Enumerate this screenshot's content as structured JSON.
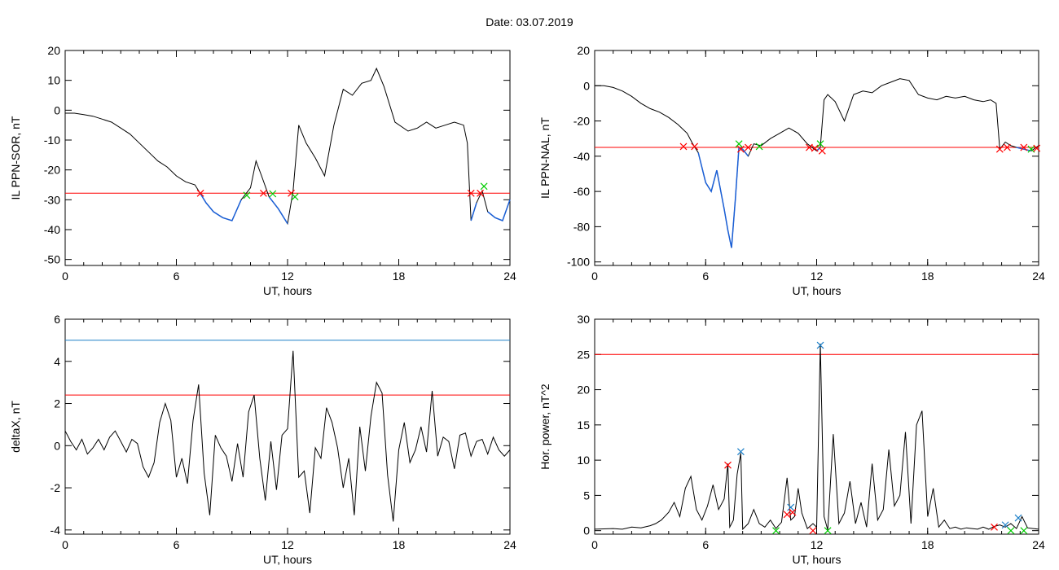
{
  "header": {
    "title": "Date:  03.07.2019"
  },
  "chart_data": [
    {
      "id": "p1",
      "type": "line",
      "xlabel": "UT, hours",
      "ylabel": "IL PPN-SOR, nT",
      "xlim": [
        0,
        24
      ],
      "ylim": [
        -52,
        20
      ],
      "xticks": [
        0,
        6,
        12,
        18,
        24
      ],
      "yticks": [
        -50,
        -40,
        -30,
        -20,
        -10,
        0,
        10,
        20
      ],
      "grid": false,
      "series": [
        {
          "color": "#000000",
          "highlight_color": "#1a5fd6",
          "highlight_below": -27.8,
          "x": [
            0,
            0.5,
            1,
            1.5,
            2,
            2.5,
            3,
            3.5,
            4,
            4.5,
            5,
            5.5,
            6,
            6.5,
            7,
            7.3,
            7.6,
            8,
            8.5,
            9,
            9.5,
            10,
            10.3,
            10.6,
            11,
            11.5,
            12,
            12.3,
            12.6,
            13,
            13.5,
            14,
            14.5,
            15,
            15.5,
            16,
            16.5,
            16.8,
            17.2,
            17.8,
            18.5,
            19,
            19.5,
            20,
            20.5,
            21,
            21.5,
            21.7,
            21.9,
            22.2,
            22.5,
            22.8,
            23.2,
            23.6,
            24
          ],
          "values": [
            -1,
            -1,
            -1.5,
            -2,
            -3,
            -4,
            -6,
            -8,
            -11,
            -14,
            -17,
            -19,
            -22,
            -24,
            -25,
            -28,
            -31,
            -34,
            -36,
            -37,
            -30,
            -26,
            -17,
            -22,
            -29,
            -33,
            -38,
            -27,
            -5,
            -11,
            -16,
            -22,
            -5,
            7,
            5,
            9,
            10,
            14,
            8,
            -4,
            -7,
            -6,
            -4,
            -6,
            -5,
            -4,
            -5,
            -11,
            -37,
            -31,
            -27,
            -34,
            -36,
            -37,
            -30
          ]
        }
      ],
      "threshold_lines": [
        {
          "value": -27.8,
          "color": "#ff0000"
        }
      ],
      "markers": [
        {
          "x": 7.3,
          "y": -27.8,
          "color": "#ff0000"
        },
        {
          "x": 9.8,
          "y": -28.5,
          "color": "#00cc00"
        },
        {
          "x": 10.7,
          "y": -27.8,
          "color": "#ff0000"
        },
        {
          "x": 11.2,
          "y": -28,
          "color": "#00cc00"
        },
        {
          "x": 12.2,
          "y": -27.8,
          "color": "#ff0000"
        },
        {
          "x": 12.4,
          "y": -29,
          "color": "#00cc00"
        },
        {
          "x": 21.9,
          "y": -27.8,
          "color": "#ff0000"
        },
        {
          "x": 22.4,
          "y": -27.8,
          "color": "#ff0000"
        },
        {
          "x": 22.6,
          "y": -25.5,
          "color": "#00cc00"
        }
      ]
    },
    {
      "id": "p2",
      "type": "line",
      "xlabel": "UT, hours",
      "ylabel": "IL PPN-NAL, nT",
      "xlim": [
        0,
        24
      ],
      "ylim": [
        -102,
        20
      ],
      "xticks": [
        0,
        6,
        12,
        18,
        24
      ],
      "yticks": [
        -100,
        -80,
        -60,
        -40,
        -20,
        0,
        20
      ],
      "grid": false,
      "series": [
        {
          "color": "#000000",
          "highlight_color": "#1a5fd6",
          "highlight_below": -35,
          "x": [
            0,
            0.5,
            1,
            1.5,
            2,
            2.5,
            3,
            3.5,
            4,
            4.5,
            5,
            5.3,
            5.6,
            6,
            6.3,
            6.6,
            7,
            7.2,
            7.4,
            7.6,
            7.8,
            8,
            8.3,
            8.6,
            9,
            9.5,
            10,
            10.5,
            11,
            11.5,
            12,
            12.2,
            12.4,
            12.6,
            13,
            13.5,
            14,
            14.5,
            15,
            15.5,
            16,
            16.5,
            17,
            17.5,
            18,
            18.5,
            19,
            19.5,
            20,
            20.5,
            21,
            21.4,
            21.7,
            21.9,
            22.2,
            22.5,
            22.8,
            23.2,
            23.6,
            24
          ],
          "values": [
            0,
            0,
            -1,
            -3,
            -6,
            -10,
            -13,
            -15,
            -18,
            -22,
            -27,
            -33,
            -38,
            -55,
            -60,
            -48,
            -70,
            -82,
            -92,
            -65,
            -35,
            -36,
            -40,
            -33,
            -34,
            -30,
            -27,
            -24,
            -27,
            -33,
            -37,
            -35,
            -8,
            -5,
            -9,
            -20,
            -5,
            -3,
            -4,
            0,
            2,
            4,
            3,
            -5,
            -7,
            -8,
            -6,
            -7,
            -6,
            -8,
            -9,
            -8,
            -10,
            -36,
            -32,
            -34,
            -35,
            -36,
            -37,
            -34
          ]
        }
      ],
      "threshold_lines": [
        {
          "value": -35,
          "color": "#ff0000"
        }
      ],
      "markers": [
        {
          "x": 4.8,
          "y": -34.5,
          "color": "#ff0000"
        },
        {
          "x": 5.4,
          "y": -34.5,
          "color": "#ff0000"
        },
        {
          "x": 7.8,
          "y": -33,
          "color": "#00cc00"
        },
        {
          "x": 7.9,
          "y": -36,
          "color": "#ff0000"
        },
        {
          "x": 8.3,
          "y": -35,
          "color": "#ff0000"
        },
        {
          "x": 8.9,
          "y": -34.5,
          "color": "#00cc00"
        },
        {
          "x": 11.6,
          "y": -35,
          "color": "#ff0000"
        },
        {
          "x": 11.9,
          "y": -35.5,
          "color": "#ff0000"
        },
        {
          "x": 12.2,
          "y": -33,
          "color": "#00cc00"
        },
        {
          "x": 12.3,
          "y": -37,
          "color": "#ff0000"
        },
        {
          "x": 21.9,
          "y": -36,
          "color": "#ff0000"
        },
        {
          "x": 22.3,
          "y": -35,
          "color": "#ff0000"
        },
        {
          "x": 23.2,
          "y": -35,
          "color": "#ff0000"
        },
        {
          "x": 23.6,
          "y": -36,
          "color": "#00cc00"
        },
        {
          "x": 23.9,
          "y": -35.5,
          "color": "#ff0000"
        }
      ]
    },
    {
      "id": "p3",
      "type": "line",
      "xlabel": "UT, hours",
      "ylabel": "deltaX, nT",
      "xlim": [
        0,
        24
      ],
      "ylim": [
        -4.2,
        6
      ],
      "xticks": [
        0,
        6,
        12,
        18,
        24
      ],
      "yticks": [
        -4,
        -2,
        0,
        2,
        4,
        6
      ],
      "grid": false,
      "series": [
        {
          "color": "#000000",
          "x": [
            0,
            0.3,
            0.6,
            0.9,
            1.2,
            1.5,
            1.8,
            2.1,
            2.4,
            2.7,
            3.0,
            3.3,
            3.6,
            3.9,
            4.2,
            4.5,
            4.8,
            5.1,
            5.4,
            5.7,
            6.0,
            6.3,
            6.6,
            6.9,
            7.2,
            7.5,
            7.8,
            8.1,
            8.4,
            8.7,
            9.0,
            9.3,
            9.6,
            9.9,
            10.2,
            10.5,
            10.8,
            11.1,
            11.4,
            11.7,
            12.0,
            12.3,
            12.6,
            12.9,
            13.2,
            13.5,
            13.8,
            14.1,
            14.4,
            14.7,
            15.0,
            15.3,
            15.6,
            15.9,
            16.2,
            16.5,
            16.8,
            17.1,
            17.4,
            17.7,
            18.0,
            18.3,
            18.6,
            18.9,
            19.2,
            19.5,
            19.8,
            20.1,
            20.4,
            20.7,
            21.0,
            21.3,
            21.6,
            21.9,
            22.2,
            22.5,
            22.8,
            23.1,
            23.4,
            23.7,
            24.0
          ],
          "values": [
            0.7,
            0.2,
            -0.2,
            0.3,
            -0.4,
            -0.1,
            0.3,
            -0.2,
            0.4,
            0.7,
            0.2,
            -0.3,
            0.3,
            0.1,
            -1.0,
            -1.5,
            -0.8,
            1.1,
            2.0,
            1.2,
            -1.5,
            -0.6,
            -1.8,
            1.2,
            2.9,
            -1.3,
            -3.3,
            0.5,
            -0.1,
            -0.5,
            -1.7,
            0.1,
            -1.5,
            1.6,
            2.4,
            -0.6,
            -2.6,
            0.2,
            -2.1,
            0.5,
            0.8,
            4.5,
            -1.5,
            -1.2,
            -3.2,
            -0.1,
            -0.6,
            1.8,
            1.1,
            -0.1,
            -2.0,
            -0.6,
            -3.3,
            0.9,
            -1.2,
            1.4,
            3.0,
            2.5,
            -1.4,
            -3.6,
            -0.2,
            1.1,
            -0.8,
            -0.2,
            0.9,
            -0.3,
            2.6,
            -0.5,
            0.4,
            0.2,
            -1.1,
            0.5,
            0.6,
            -0.5,
            0.2,
            0.3,
            -0.4,
            0.4,
            -0.2,
            -0.5,
            -0.2
          ]
        }
      ],
      "threshold_lines": [
        {
          "value": 5.0,
          "color": "#1c7fc8"
        },
        {
          "value": 2.4,
          "color": "#ff0000"
        }
      ],
      "markers": []
    },
    {
      "id": "p4",
      "type": "line",
      "xlabel": "UT, hours",
      "ylabel": "Hor. power, nT^2",
      "xlim": [
        0,
        24
      ],
      "ylim": [
        -0.5,
        30
      ],
      "xticks": [
        0,
        6,
        12,
        18,
        24
      ],
      "yticks": [
        0,
        5,
        10,
        15,
        20,
        25,
        30
      ],
      "grid": false,
      "series": [
        {
          "color": "#000000",
          "x": [
            0,
            1,
            1.5,
            2,
            2.5,
            3,
            3.3,
            3.6,
            4,
            4.3,
            4.6,
            4.9,
            5.2,
            5.5,
            5.8,
            6.1,
            6.4,
            6.7,
            7.0,
            7.2,
            7.3,
            7.5,
            7.7,
            7.9,
            8.0,
            8.3,
            8.6,
            8.9,
            9.2,
            9.5,
            9.8,
            10.1,
            10.4,
            10.6,
            10.8,
            11.0,
            11.2,
            11.5,
            11.8,
            12.0,
            12.2,
            12.4,
            12.6,
            12.9,
            13.2,
            13.5,
            13.8,
            14.1,
            14.4,
            14.7,
            15.0,
            15.3,
            15.6,
            15.9,
            16.2,
            16.5,
            16.8,
            17.1,
            17.4,
            17.7,
            18.0,
            18.3,
            18.6,
            18.9,
            19.2,
            19.5,
            19.8,
            20.1,
            20.4,
            20.7,
            21.0,
            21.3,
            21.6,
            21.9,
            22.2,
            22.5,
            22.8,
            23.1,
            23.4,
            23.7,
            24.0
          ],
          "values": [
            0.2,
            0.3,
            0.2,
            0.5,
            0.4,
            0.7,
            1.0,
            1.5,
            2.6,
            4.0,
            2.0,
            6.0,
            7.7,
            3.0,
            1.5,
            3.5,
            6.5,
            3.0,
            4.5,
            9.5,
            0.5,
            1.5,
            8.0,
            11.0,
            0.2,
            1.0,
            3.0,
            1.0,
            0.5,
            1.5,
            0.3,
            1.2,
            7.5,
            1.5,
            2.0,
            6.0,
            2.5,
            0.3,
            1.0,
            0.5,
            26.5,
            2.0,
            0.1,
            13.7,
            1.0,
            2.5,
            7.0,
            1.0,
            4.0,
            0.5,
            9.5,
            1.5,
            3.0,
            11.5,
            3.5,
            5.0,
            14.0,
            1.0,
            15.0,
            17.0,
            2.0,
            6.0,
            0.5,
            1.5,
            0.3,
            0.5,
            0.2,
            0.4,
            0.3,
            0.2,
            0.5,
            0.2,
            0.6,
            0.8,
            0.5,
            1.0,
            0.3,
            2.0,
            0.4,
            0.3,
            0.2
          ]
        }
      ],
      "threshold_lines": [
        {
          "value": 25,
          "color": "#ff0000"
        }
      ],
      "markers": [
        {
          "x": 7.2,
          "y": 9.3,
          "color": "#ff0000"
        },
        {
          "x": 7.9,
          "y": 11.2,
          "color": "#1c7fc8"
        },
        {
          "x": 9.8,
          "y": 0,
          "color": "#00cc00"
        },
        {
          "x": 10.4,
          "y": 2.3,
          "color": "#ff0000"
        },
        {
          "x": 10.6,
          "y": 3.3,
          "color": "#1c7fc8"
        },
        {
          "x": 10.7,
          "y": 2.6,
          "color": "#ff0000"
        },
        {
          "x": 11.8,
          "y": 0,
          "color": "#ff0000"
        },
        {
          "x": 12.2,
          "y": 26.3,
          "color": "#1c7fc8"
        },
        {
          "x": 12.6,
          "y": 0,
          "color": "#00cc00"
        },
        {
          "x": 21.6,
          "y": 0.5,
          "color": "#ff0000"
        },
        {
          "x": 22.2,
          "y": 0.8,
          "color": "#1c7fc8"
        },
        {
          "x": 22.5,
          "y": 0,
          "color": "#00cc00"
        },
        {
          "x": 22.9,
          "y": 1.8,
          "color": "#1c7fc8"
        },
        {
          "x": 23.2,
          "y": 0,
          "color": "#00cc00"
        }
      ]
    }
  ]
}
